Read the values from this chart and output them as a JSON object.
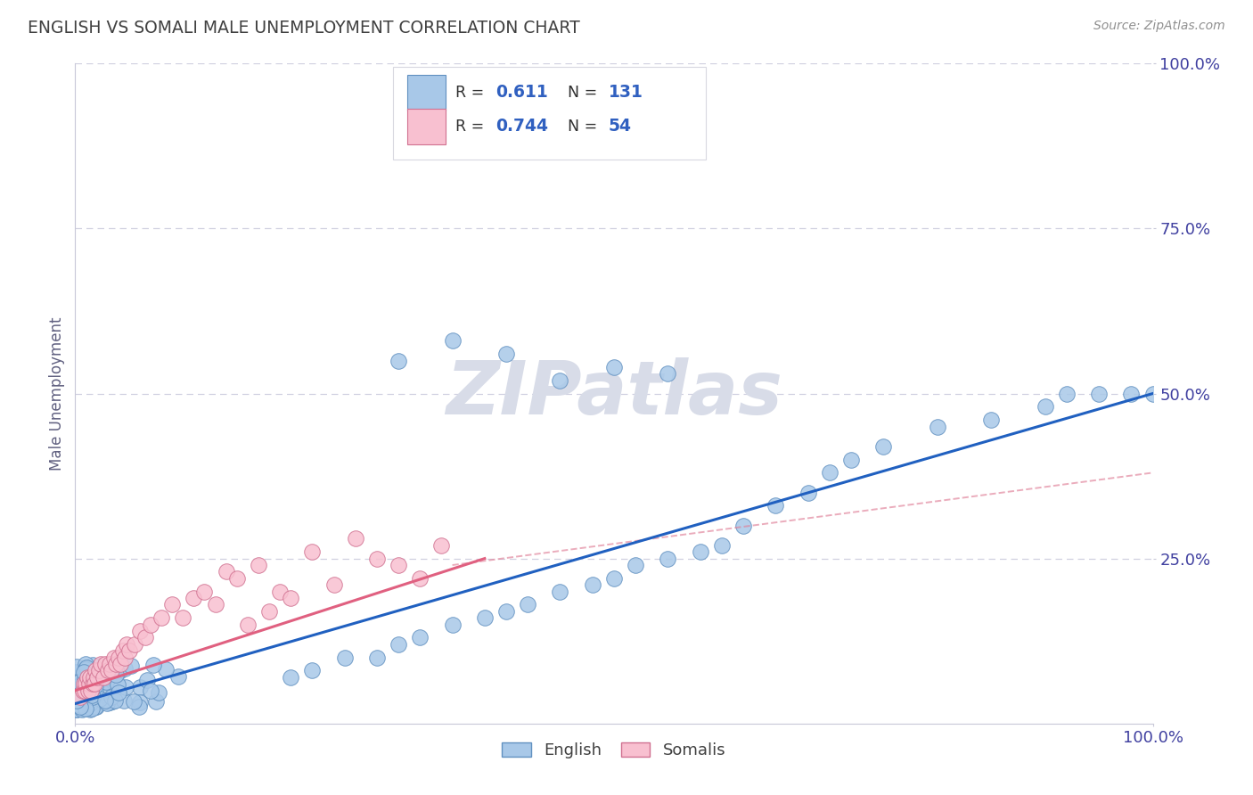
{
  "title": "ENGLISH VS SOMALI MALE UNEMPLOYMENT CORRELATION CHART",
  "source_text": "Source: ZipAtlas.com",
  "ylabel": "Male Unemployment",
  "watermark": "ZIPatlas",
  "english_color": "#a8c8e8",
  "english_edge_color": "#6090c0",
  "somali_color": "#f8c0d0",
  "somali_edge_color": "#d07090",
  "english_line_color": "#2060c0",
  "somali_line_color": "#e06080",
  "somali_dash_color": "#e08098",
  "title_color": "#404040",
  "source_color": "#909090",
  "grid_color": "#d0d0e0",
  "axis_tick_color": "#4040a0",
  "ylabel_color": "#606080",
  "watermark_color": "#d8dce8",
  "legend_r_color": "#303030",
  "legend_val_color": "#3060c0"
}
